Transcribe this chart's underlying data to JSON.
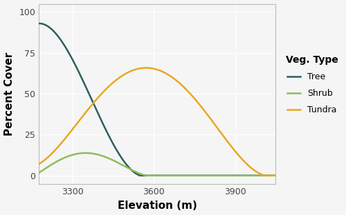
{
  "x_min": 3175,
  "x_max": 4050,
  "y_min": -5,
  "y_max": 105,
  "x_ticks": [
    3300,
    3600,
    3900
  ],
  "y_ticks": [
    0,
    25,
    50,
    75,
    100
  ],
  "xlabel": "Elevation (m)",
  "ylabel": "Percent Cover",
  "legend_title": "Veg. Type",
  "legend_labels": [
    "Tree",
    "Shrub",
    "Tundra"
  ],
  "tree_color": "#2d5f5d",
  "shrub_color": "#8fbc5a",
  "tundra_color": "#e8a820",
  "background_color": "#f5f5f5",
  "grid_color": "#ffffff",
  "line_width": 1.8,
  "tree_pts_x": [
    3175,
    3200,
    3230,
    3260,
    3290,
    3320,
    3360,
    3400,
    3440,
    3480,
    3520,
    3550,
    3570,
    3590
  ],
  "tree_pts_y": [
    93,
    92,
    88,
    82,
    74,
    64,
    50,
    36,
    22,
    10,
    3,
    1,
    0,
    0
  ],
  "shrub_pts_x": [
    3175,
    3220,
    3260,
    3300,
    3330,
    3360,
    3390,
    3420,
    3460,
    3500,
    3540,
    3580,
    3620
  ],
  "shrub_pts_y": [
    2,
    6,
    10,
    13,
    14,
    14,
    13,
    11,
    8,
    5,
    2,
    0,
    0
  ],
  "tundra_pts_x": [
    3175,
    3220,
    3270,
    3320,
    3370,
    3420,
    3470,
    3530,
    3580,
    3620,
    3660,
    3700,
    3740,
    3790,
    3840,
    3890,
    3940,
    3990,
    4040
  ],
  "tundra_pts_y": [
    6,
    14,
    23,
    33,
    43,
    52,
    59,
    64,
    65,
    64,
    62,
    57,
    50,
    39,
    27,
    16,
    7,
    2,
    0
  ]
}
